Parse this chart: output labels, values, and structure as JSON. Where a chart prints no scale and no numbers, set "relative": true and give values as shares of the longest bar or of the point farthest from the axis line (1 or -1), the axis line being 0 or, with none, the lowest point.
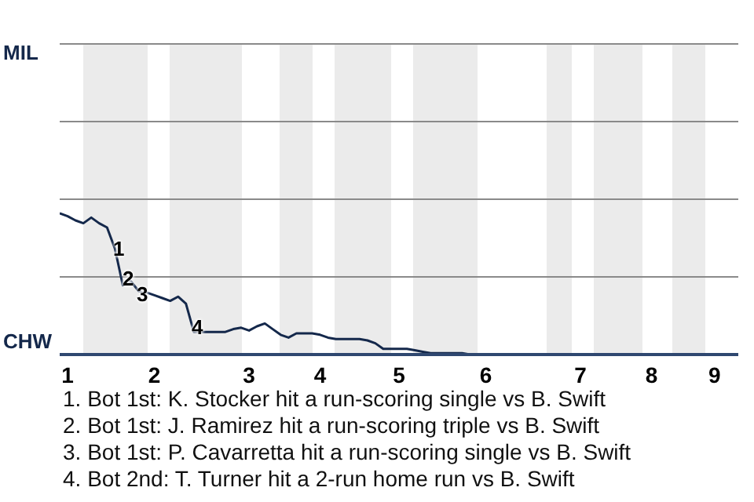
{
  "chart_data": {
    "type": "line",
    "relative": true,
    "categories": [
      null,
      "1",
      null,
      null,
      null,
      null,
      null,
      null,
      null,
      null,
      null,
      null,
      "2",
      null,
      null,
      null,
      null,
      null,
      null,
      null,
      null,
      null,
      null,
      null,
      "3",
      null,
      null,
      null,
      null,
      null,
      null,
      null,
      null,
      "4",
      null,
      null,
      null,
      null,
      null,
      null,
      null,
      null,
      null,
      "5",
      null,
      null,
      null,
      null,
      null,
      null,
      null,
      null,
      null,
      null,
      "6",
      null,
      null,
      null,
      null,
      null,
      null,
      null,
      null,
      null,
      null,
      null,
      "7",
      null,
      null,
      null,
      null,
      null,
      null,
      null,
      null,
      "8",
      null,
      null,
      null,
      null,
      null,
      null,
      null,
      "9",
      null,
      null,
      null
    ],
    "series": [
      {
        "color": "#14284b",
        "values": [
          1.0,
          0.98,
          0.95,
          0.93,
          0.97,
          0.93,
          0.9,
          0.75,
          0.49,
          0.52,
          0.45,
          0.44,
          0.42,
          0.4,
          0.38,
          0.41,
          0.36,
          0.16,
          0.16,
          0.16,
          0.16,
          0.16,
          0.18,
          0.19,
          0.17,
          0.2,
          0.22,
          0.18,
          0.14,
          0.12,
          0.15,
          0.15,
          0.15,
          0.14,
          0.12,
          0.11,
          0.11,
          0.11,
          0.11,
          0.1,
          0.08,
          0.04,
          0.04,
          0.04,
          0.04,
          0.03,
          0.02,
          0.01,
          0.01,
          0.01,
          0.01,
          0.01,
          0,
          0,
          0,
          0,
          0,
          0,
          0,
          0,
          0,
          0,
          0,
          0,
          0,
          0,
          0,
          0,
          0,
          0,
          0,
          0,
          0,
          0,
          0,
          0,
          0,
          0,
          0,
          0,
          0,
          0,
          0,
          0,
          0,
          0,
          0
        ]
      }
    ],
    "marker": "none",
    "ref_lines": [
      {
        "axis": "y",
        "value": 0.55,
        "color": "#8a8a8a"
      },
      {
        "axis": "y",
        "value": 1.1,
        "color": "#8a8a8a"
      },
      {
        "axis": "y",
        "value": 1.65,
        "color": "#8a8a8a"
      },
      {
        "axis": "y",
        "value": 2.2,
        "color": "#8a8a8a"
      }
    ],
    "annotations": [
      "MIL",
      "CHW",
      "1",
      "2",
      "3",
      "4",
      "1. Bot 1st: K. Stocker hit a run-scoring single vs B. Swift",
      "2. Bot 1st: J. Ramirez hit a run-scoring triple vs B. Swift",
      "3. Bot 1st: P. Cavarretta hit a run-scoring single vs B. Swift",
      "4. Bot 2nd: T. Turner hit a 2-run home run vs B. Swift"
    ]
  }
}
